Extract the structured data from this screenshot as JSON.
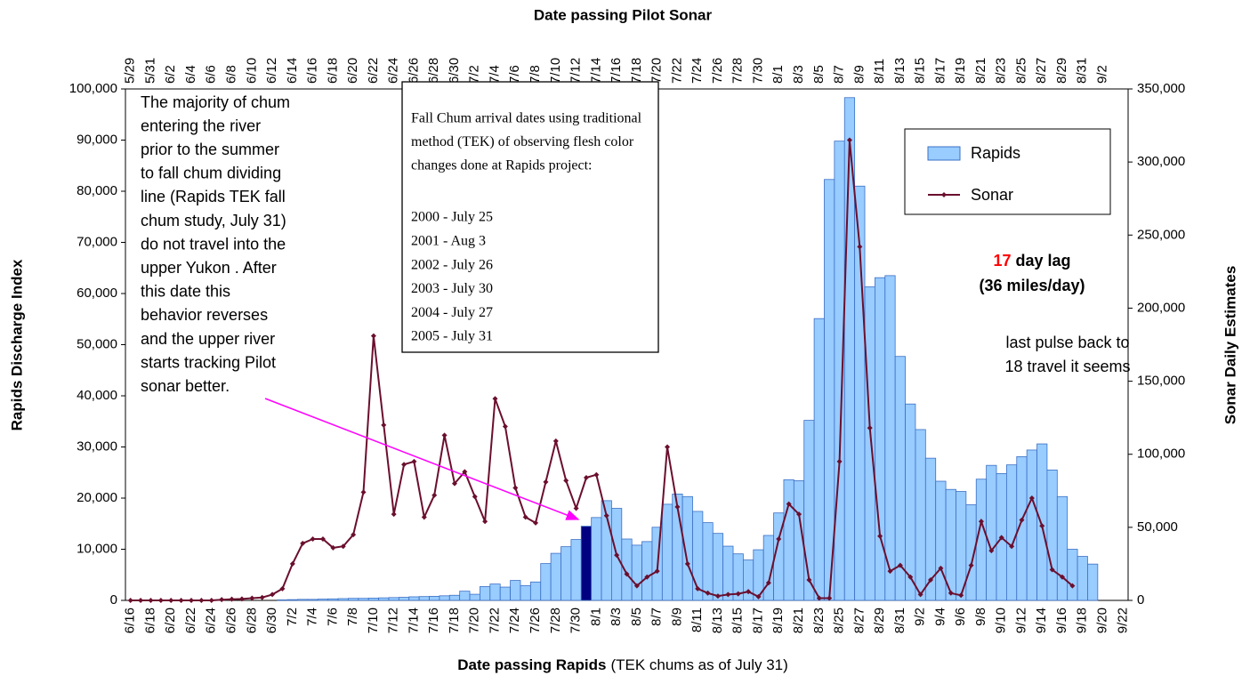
{
  "chart_data": {
    "type": "bar_line",
    "x_label_top": "Date passing Pilot Sonar",
    "x_label": "Date passing Rapids",
    "x_label_note": "(TEK chums as of July 31)",
    "y_label": "Rapids Discharge Index",
    "y2_label": "Sonar Daily Estimates",
    "categories": [
      "6/16",
      null,
      "6/18",
      null,
      "6/20",
      null,
      "6/22",
      null,
      "6/24",
      null,
      "6/26",
      null,
      "6/28",
      null,
      "6/30",
      null,
      "7/2",
      null,
      "7/4",
      null,
      "7/6",
      null,
      "7/8",
      null,
      "7/10",
      null,
      "7/12",
      null,
      "7/14",
      null,
      "7/16",
      null,
      "7/18",
      null,
      "7/20",
      null,
      "7/22",
      null,
      "7/24",
      null,
      "7/26",
      null,
      "7/28",
      null,
      "7/30",
      null,
      "8/1",
      null,
      "8/3",
      null,
      "8/5",
      null,
      "8/7",
      null,
      "8/9",
      null,
      "8/11",
      null,
      "8/13",
      null,
      "8/15",
      null,
      "8/17",
      null,
      "8/19",
      null,
      "8/21",
      null,
      "8/23",
      null,
      "8/25",
      null,
      "8/27",
      null,
      "8/29",
      null,
      "8/31",
      null,
      "9/2",
      null,
      "9/4",
      null,
      "9/6",
      null,
      "9/8",
      null,
      "9/10",
      null,
      "9/12",
      null,
      "9/14",
      null,
      "9/16",
      null,
      "9/18",
      null,
      "9/20",
      null,
      "9/22"
    ],
    "categories_top": [
      "5/29",
      null,
      "5/31",
      null,
      "6/2",
      null,
      "6/4",
      null,
      "6/6",
      null,
      "6/8",
      null,
      "6/10",
      null,
      "6/12",
      null,
      "6/14",
      null,
      "6/16",
      null,
      "6/18",
      null,
      "6/20",
      null,
      "6/22",
      null,
      "6/24",
      null,
      "6/26",
      null,
      "6/28",
      null,
      "6/30",
      null,
      "7/2",
      null,
      "7/4",
      null,
      "7/6",
      null,
      "7/8",
      null,
      "7/10",
      null,
      "7/12",
      null,
      "7/14",
      null,
      "7/16",
      null,
      "7/18",
      null,
      "7/20",
      null,
      "7/22",
      null,
      "7/24",
      null,
      "7/26",
      null,
      "7/28",
      null,
      "7/30",
      null,
      "8/1",
      null,
      "8/3",
      null,
      "8/5",
      null,
      "8/7",
      null,
      "8/9",
      null,
      "8/11",
      null,
      "8/13",
      null,
      "8/15",
      null,
      "8/17",
      null,
      "8/19",
      null,
      "8/21",
      null,
      "8/23",
      null,
      "8/25",
      null,
      "8/27",
      null,
      "8/29",
      null,
      "8/31",
      null,
      "9/2"
    ],
    "series": [
      {
        "name": "Rapids",
        "type": "bar",
        "color": "#99ccff",
        "edge_color": "#3a6fc4",
        "highlight_index": 45,
        "highlight_color": "#000080",
        "values": [
          0,
          0,
          0,
          0,
          0,
          0,
          0,
          0,
          0,
          0,
          0,
          0,
          0,
          0,
          0,
          100,
          150,
          200,
          200,
          250,
          300,
          350,
          400,
          400,
          450,
          500,
          550,
          600,
          700,
          750,
          800,
          900,
          1000,
          1800,
          1200,
          2700,
          3200,
          2600,
          3900,
          2900,
          3600,
          7200,
          9200,
          10500,
          11900,
          14500,
          16200,
          19500,
          18000,
          12000,
          10800,
          11500,
          14300,
          18800,
          20800,
          20300,
          17400,
          15200,
          13100,
          10600,
          9100,
          7900,
          9900,
          12700,
          17100,
          23600,
          23400,
          35200,
          55100,
          82300,
          89800,
          98300,
          81000,
          61300,
          63100,
          63500,
          47700,
          38400,
          33400,
          27800,
          23300,
          21700,
          21300,
          18700,
          23700,
          26400,
          24800,
          26500,
          28100,
          29400,
          30600,
          25500,
          20300,
          10000,
          8600,
          7100,
          null,
          null,
          null
        ]
      },
      {
        "name": "Sonar",
        "type": "line",
        "axis": "y2",
        "color": "#6b0f2e",
        "values": [
          0,
          0,
          0,
          0,
          0,
          0,
          0,
          0,
          0,
          500,
          800,
          1000,
          1500,
          2000,
          4000,
          8000,
          25000,
          39000,
          42000,
          42000,
          36000,
          37000,
          45000,
          74000,
          181000,
          120000,
          59000,
          93000,
          95000,
          57000,
          72000,
          113000,
          80000,
          88000,
          71000,
          54000,
          138000,
          119000,
          77000,
          57000,
          53000,
          81000,
          109000,
          82000,
          63000,
          84000,
          86000,
          58000,
          31000,
          18000,
          10000,
          16000,
          20000,
          105000,
          64000,
          25000,
          8000,
          5000,
          3000,
          4000,
          4500,
          6000,
          2500,
          12000,
          42000,
          66000,
          59000,
          14000,
          1500,
          1500,
          95000,
          315000,
          242000,
          118000,
          44000,
          20000,
          24000,
          16000,
          4000,
          14000,
          22000,
          5000,
          3500,
          24000,
          54000,
          34000,
          43000,
          37000,
          55000,
          70000,
          51000,
          21000,
          16000,
          10000,
          null,
          null,
          null,
          null,
          null
        ]
      }
    ],
    "ylim": [
      0,
      100000
    ],
    "yticks": [
      0,
      {
        "value": 10000,
        "label": "10,000"
      },
      {
        "value": 20000,
        "label": "20,000"
      },
      {
        "value": 30000,
        "label": "30,000"
      },
      {
        "value": 40000,
        "label": "40,000"
      },
      {
        "value": 50000,
        "label": "50,000"
      },
      {
        "value": 60000,
        "label": "60,000"
      },
      {
        "value": 70000,
        "label": "70,000"
      },
      {
        "value": 80000,
        "label": "80,000"
      },
      {
        "value": 90000,
        "label": "90,000"
      },
      {
        "value": 100000,
        "label": "100,000"
      }
    ],
    "y2lim": [
      0,
      350000
    ],
    "y2ticks": [
      0,
      {
        "value": 50000,
        "label": "50,000"
      },
      {
        "value": 100000,
        "label": "100,000"
      },
      {
        "value": 150000,
        "label": "150,000"
      },
      {
        "value": 200000,
        "label": "200,000"
      },
      {
        "value": 250000,
        "label": "250,000"
      },
      {
        "value": 300000,
        "label": "300,000"
      },
      {
        "value": 350000,
        "label": "350,000"
      }
    ],
    "legend": "upper right",
    "annotations": {
      "left_note": [
        "The majority of chum",
        "entering the river",
        "prior to the summer",
        "to fall chum dividing",
        "line (Rapids TEK fall",
        "chum study, July 31)",
        "do not travel into the",
        "upper Yukon . After",
        "this date this",
        "behavior reverses",
        "and the upper river",
        "starts tracking Pilot",
        "sonar better."
      ],
      "tek_box": {
        "heading": [
          "Fall Chum arrival dates using traditional",
          "method (TEK) of observing flesh color",
          "changes done at Rapids project:"
        ],
        "years": [
          "2000 - July 25",
          "2001 - Aug 3",
          "2002 - July 26",
          "2003 - July 30",
          "2004 - July 27",
          "2005 - July 31"
        ]
      },
      "lag": {
        "number": "17",
        "text": "day lag",
        "speed": "(36 miles/day)",
        "number_color": "#ff0000"
      },
      "pulse_note": [
        "last pulse back to",
        "18 travel it seems"
      ]
    }
  }
}
